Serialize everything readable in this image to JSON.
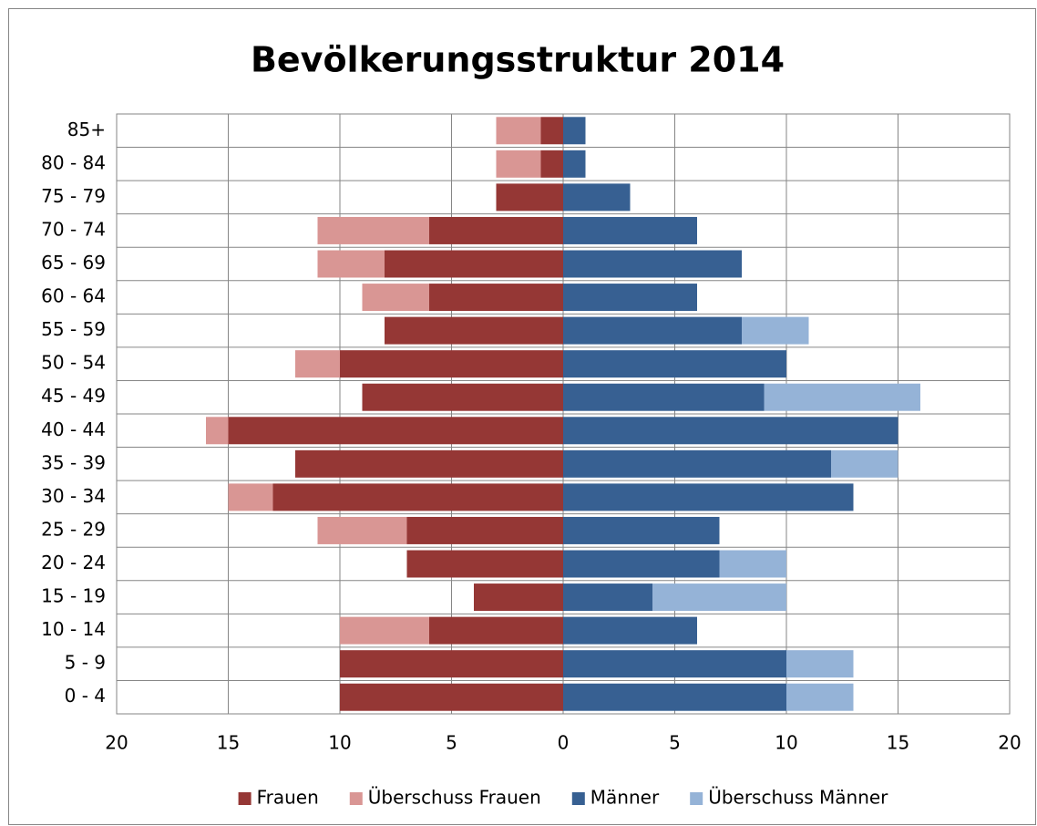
{
  "chart_data": {
    "type": "stacked-barh",
    "title": "Bevölkerungsstruktur 2014",
    "categories": [
      "85+",
      "80 - 84",
      "75 - 79",
      "70 - 74",
      "65 - 69",
      "60 - 64",
      "55 - 59",
      "50 - 54",
      "45 - 49",
      "40 - 44",
      "35 - 39",
      "30 - 34",
      "25 - 29",
      "20 - 24",
      "15 - 19",
      "10 - 14",
      "5 - 9",
      "0 - 4"
    ],
    "series": [
      {
        "name": "Frauen",
        "color": "#953735",
        "values": [
          -1,
          -1,
          -3,
          -6,
          -8,
          -6,
          -8,
          -10,
          -9,
          -15,
          -12,
          -13,
          -7,
          -7,
          -4,
          -6,
          -10,
          -10
        ]
      },
      {
        "name": "Überschuss Frauen",
        "color": "#d99694",
        "values": [
          -2,
          -2,
          0,
          -5,
          -3,
          -3,
          0,
          -2,
          0,
          -1,
          0,
          -2,
          -4,
          0,
          0,
          -4,
          0,
          0
        ]
      },
      {
        "name": "Männer",
        "color": "#376092",
        "values": [
          1,
          1,
          3,
          6,
          8,
          6,
          8,
          10,
          9,
          15,
          12,
          13,
          7,
          7,
          4,
          6,
          10,
          10
        ]
      },
      {
        "name": "Überschuss Männer",
        "color": "#95b3d7",
        "values": [
          0,
          0,
          0,
          0,
          0,
          0,
          3,
          0,
          7,
          0,
          3,
          0,
          0,
          3,
          6,
          0,
          3,
          3
        ]
      }
    ],
    "xlim": [
      -20,
      20
    ],
    "xticks": [
      {
        "value": -20,
        "label": "20"
      },
      {
        "value": -15,
        "label": "15"
      },
      {
        "value": -10,
        "label": "10"
      },
      {
        "value": -5,
        "label": "5"
      },
      0,
      5,
      10,
      15,
      20
    ],
    "grid": true,
    "legend": "bottom"
  }
}
